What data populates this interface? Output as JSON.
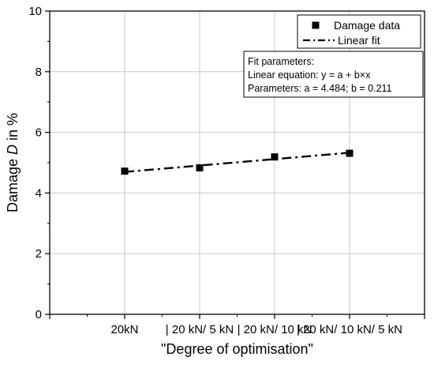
{
  "chart_data": {
    "type": "scatter",
    "xlabel": "\"Degree of optimisation\"",
    "ylabel_prefix": "Damage ",
    "ylabel_symbol": "D",
    "ylabel_suffix": " in %",
    "categories": [
      "20kN",
      "| 20 kN/ 5 kN",
      "| 20 kN/ 10 kN",
      "| 20 kN/ 10 kN/ 5 kN"
    ],
    "x": [
      1,
      2,
      3,
      4
    ],
    "xlim": [
      0,
      5
    ],
    "ylim": [
      0,
      10
    ],
    "yticks": [
      0,
      2,
      4,
      6,
      8,
      10
    ],
    "grid": true,
    "series": [
      {
        "name": "Damage data",
        "kind": "marker",
        "marker": "square",
        "color": "#000000",
        "values": [
          4.72,
          4.83,
          5.19,
          5.31
        ]
      },
      {
        "name": "Linear fit",
        "kind": "line",
        "style": "dash-dot",
        "color": "#000000",
        "fit": {
          "a": 4.484,
          "b": 0.211
        },
        "x_range": [
          1,
          4
        ]
      }
    ],
    "legend_position": "top-right",
    "fit_box": {
      "title": "Fit parameters:",
      "equation": "Linear equation: y = a + b×x",
      "parameters": "Parameters: a = 4.484; b = 0.211"
    }
  }
}
